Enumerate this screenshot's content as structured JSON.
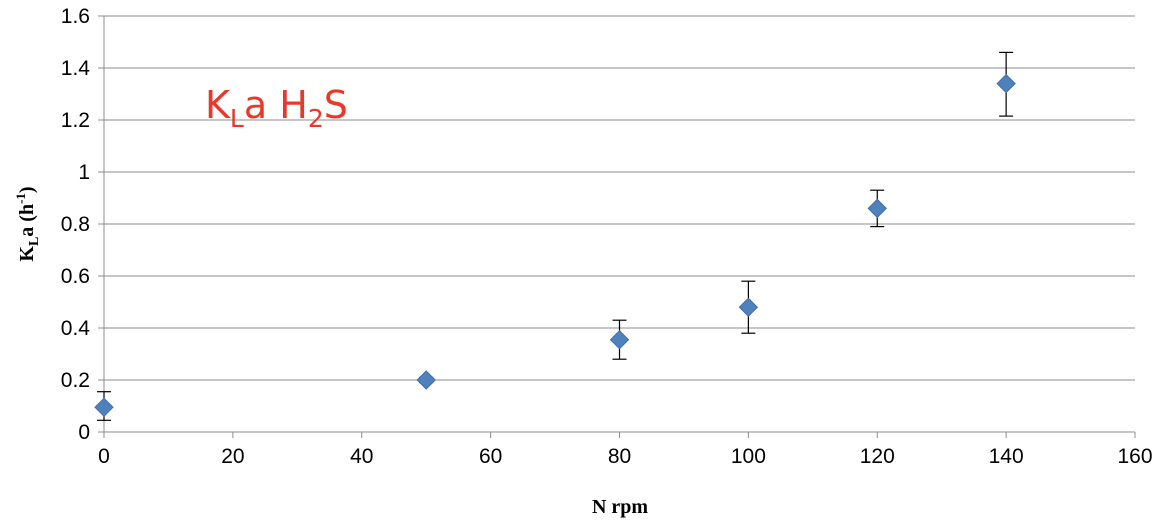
{
  "chart_data": {
    "type": "scatter",
    "title": "",
    "annotation": {
      "main1": "K",
      "sub1": "L",
      "main2": "a H",
      "sub2": "2",
      "main3": "S"
    },
    "xlabel": "N rpm",
    "ylabel": {
      "main1": "K",
      "sub1": "L",
      "main2": "a (h",
      "sup1": "-1",
      "main3": ")"
    },
    "xlim": [
      0,
      160
    ],
    "ylim": [
      0,
      1.6
    ],
    "x_ticks": [
      "0",
      "20",
      "40",
      "60",
      "80",
      "100",
      "120",
      "140",
      "160"
    ],
    "y_ticks": [
      "0",
      "0.2",
      "0.4",
      "0.6",
      "0.8",
      "1",
      "1.2",
      "1.4",
      "1.6"
    ],
    "grid": "horizontal",
    "marker": "diamond",
    "marker_color": "#4f81bd",
    "grid_color": "#8c8c8c",
    "points": [
      {
        "x": 0,
        "y": 0.095,
        "err_low": 0.045,
        "err_high": 0.155
      },
      {
        "x": 50,
        "y": 0.2,
        "err_low": 0.19,
        "err_high": 0.21
      },
      {
        "x": 80,
        "y": 0.355,
        "err_low": 0.28,
        "err_high": 0.43
      },
      {
        "x": 100,
        "y": 0.48,
        "err_low": 0.38,
        "err_high": 0.58
      },
      {
        "x": 120,
        "y": 0.86,
        "err_low": 0.79,
        "err_high": 0.93
      },
      {
        "x": 140,
        "y": 1.34,
        "err_low": 1.215,
        "err_high": 1.46
      }
    ]
  }
}
